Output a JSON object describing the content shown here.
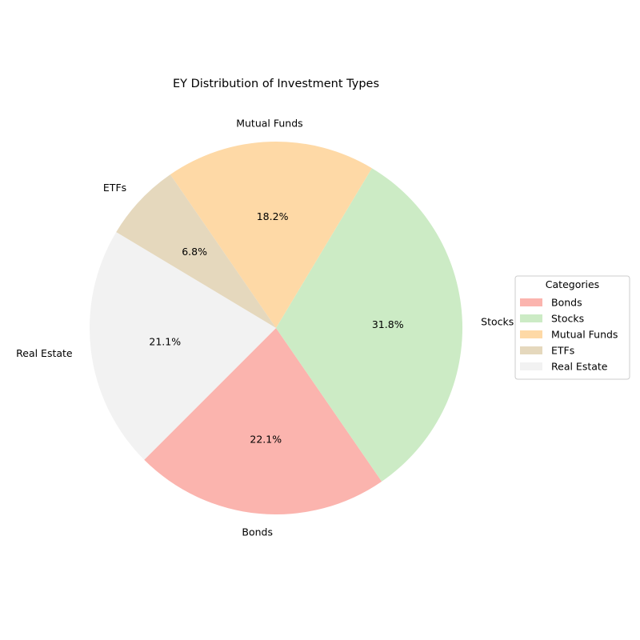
{
  "chart_data": {
    "type": "pie",
    "title": "EY Distribution of Investment Types",
    "categories": [
      "Bonds",
      "Stocks",
      "Mutual Funds",
      "ETFs",
      "Real Estate"
    ],
    "values": [
      22.1,
      31.8,
      18.2,
      6.8,
      21.1
    ],
    "percent_labels": [
      "22.1%",
      "31.8%",
      "18.2%",
      "6.8%",
      "21.1%"
    ],
    "colors": [
      "#fbb4ae",
      "#ccebc5",
      "#fed9a6",
      "#e5d8bd",
      "#f2f2f2"
    ],
    "start_angle_deg": 225,
    "direction": "counterclockwise",
    "legend": {
      "title": "Categories",
      "placement": "right"
    }
  }
}
